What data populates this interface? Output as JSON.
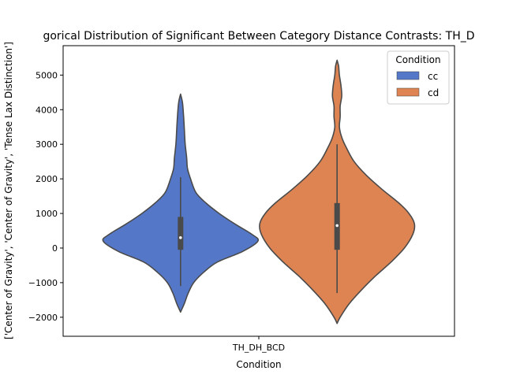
{
  "chart_data": {
    "type": "violin",
    "title": "gorical Distribution of Significant Between Category Distance Contrasts: TH_D",
    "xlabel": "Condition",
    "ylabel": "['Center of Gravity', 'Center of Gravity', 'Tense Lax Distinction']",
    "categories": [
      "TH_DH_BCD"
    ],
    "ylim": [
      -2550,
      5850
    ],
    "yticks": [
      -2000,
      -1000,
      0,
      1000,
      2000,
      3000,
      4000,
      5000
    ],
    "legend": {
      "title": "Condition",
      "placement": "top-right",
      "entries": [
        "cc",
        "cd"
      ]
    },
    "series": [
      {
        "name": "cc",
        "color": "#5577c8",
        "category": "TH_DH_BCD",
        "offset": -0.2,
        "density_y": [
          -1850,
          -1600,
          -1300,
          -1000,
          -700,
          -400,
          -100,
          200,
          400,
          700,
          1000,
          1300,
          1600,
          2000,
          2300,
          2600,
          3000,
          3400,
          3800,
          4200,
          4450
        ],
        "density_w": [
          0.0,
          0.05,
          0.1,
          0.17,
          0.3,
          0.48,
          0.8,
          1.0,
          0.92,
          0.7,
          0.5,
          0.33,
          0.2,
          0.13,
          0.09,
          0.08,
          0.06,
          0.05,
          0.04,
          0.025,
          0.0
        ],
        "quartiles": [
          -50,
          300,
          900
        ],
        "whiskers": [
          -1100,
          2050
        ]
      },
      {
        "name": "cd",
        "color": "#dd8452",
        "category": "TH_DH_BCD",
        "offset": 0.2,
        "density_y": [
          -2180,
          -2000,
          -1600,
          -1200,
          -800,
          -400,
          0,
          400,
          700,
          1000,
          1300,
          1700,
          2100,
          2500,
          2900,
          3200,
          3500,
          3800,
          4100,
          4400,
          4700,
          5000,
          5250,
          5430
        ],
        "density_w": [
          0.0,
          0.04,
          0.16,
          0.32,
          0.5,
          0.7,
          0.87,
          0.98,
          1.0,
          0.93,
          0.8,
          0.58,
          0.38,
          0.22,
          0.12,
          0.06,
          0.03,
          0.04,
          0.04,
          0.06,
          0.05,
          0.03,
          0.02,
          0.0
        ],
        "quartiles": [
          -50,
          650,
          1300
        ],
        "whiskers": [
          -1300,
          3000
        ]
      }
    ]
  }
}
